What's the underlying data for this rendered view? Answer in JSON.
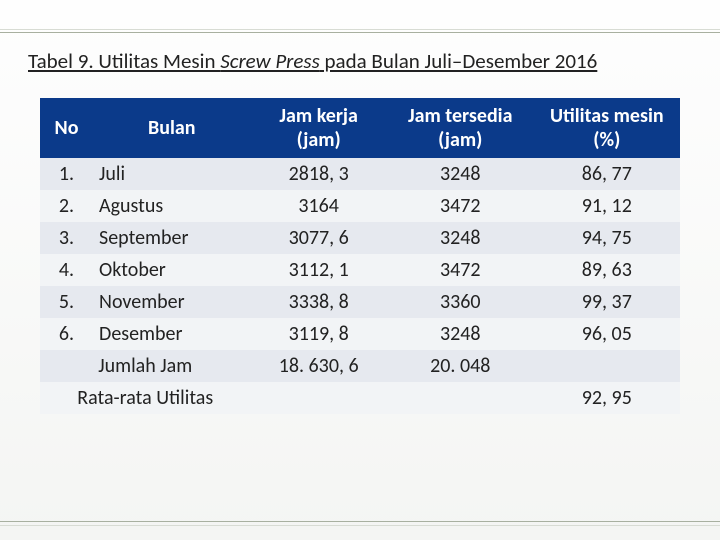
{
  "title_prefix": "Tabel 9. Utilitas Mesin ",
  "title_italic": "Screw Press",
  "title_suffix": " pada Bulan Juli–Desember 2016",
  "columns": {
    "no": "No",
    "bulan": "Bulan",
    "jam_kerja_l1": "Jam kerja",
    "jam_kerja_l2": "(jam)",
    "jam_tersedia_l1": "Jam tersedia",
    "jam_tersedia_l2": "(jam)",
    "utilitas_l1": "Utilitas mesin",
    "utilitas_l2": "(%)"
  },
  "rows": [
    {
      "no": "1.",
      "bulan": "Juli",
      "jk": "2818, 3",
      "jt": "3248",
      "um": "86, 77"
    },
    {
      "no": "2.",
      "bulan": "Agustus",
      "jk": "3164",
      "jt": "3472",
      "um": "91, 12"
    },
    {
      "no": "3.",
      "bulan": "September",
      "jk": "3077, 6",
      "jt": "3248",
      "um": "94, 75"
    },
    {
      "no": "4.",
      "bulan": "Oktober",
      "jk": "3112, 1",
      "jt": "3472",
      "um": "89, 63"
    },
    {
      "no": "5.",
      "bulan": "November",
      "jk": "3338, 8",
      "jt": "3360",
      "um": "99, 37"
    },
    {
      "no": "6.",
      "bulan": "Desember",
      "jk": "3119, 8",
      "jt": "3248",
      "um": "96, 05"
    }
  ],
  "footer": {
    "jumlah_label": "Jumlah Jam",
    "jumlah_jk": "18. 630, 6",
    "jumlah_jt": "20. 048",
    "rata_label": "Rata-rata Utilitas",
    "rata_um": "92, 95"
  },
  "colors": {
    "header_bg": "#0b3a8a",
    "row_odd": "#e6e9ef",
    "row_even": "#f2f4f6"
  }
}
